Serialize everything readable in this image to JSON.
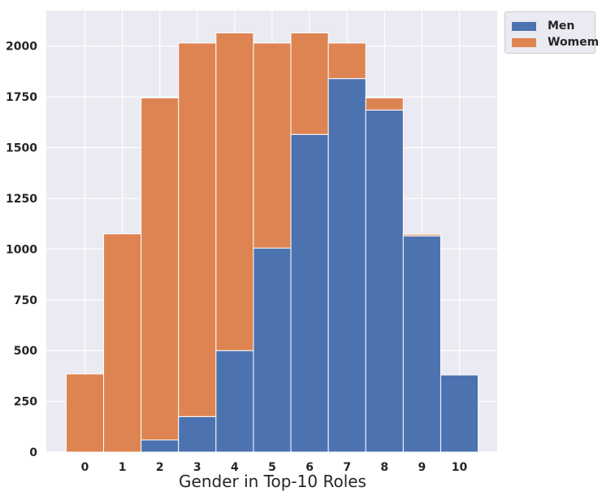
{
  "chart_data": {
    "type": "bar",
    "stacked": true,
    "categories": [
      "0",
      "1",
      "2",
      "3",
      "4",
      "5",
      "6",
      "7",
      "8",
      "9",
      "10"
    ],
    "series": [
      {
        "name": "Men",
        "color": "#4c72b0",
        "values": [
          0,
          0,
          60,
          175,
          500,
          1005,
          1565,
          1840,
          1685,
          1065,
          380
        ]
      },
      {
        "name": "Womem",
        "color": "#dd8452",
        "values": [
          385,
          1075,
          1685,
          1840,
          1565,
          1010,
          500,
          175,
          60,
          8,
          0
        ]
      }
    ],
    "xlabel": "Gender in Top-10 Roles",
    "ylabel": "",
    "yticks": [
      0,
      250,
      500,
      750,
      1000,
      1250,
      1500,
      1750,
      2000
    ],
    "ylim": [
      0,
      2175
    ],
    "grid": true,
    "legend_position": "outside-top-right",
    "background_color": "#eaeaf2",
    "grid_color": "#ffffff"
  }
}
